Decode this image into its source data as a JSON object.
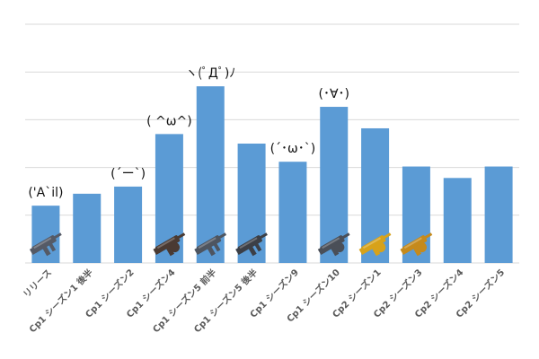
{
  "chart_data": {
    "type": "bar",
    "title": "",
    "xlabel": "",
    "ylabel": "",
    "ylim": [
      0,
      5
    ],
    "grid": true,
    "legend": "none",
    "bar_color": "#5b9bd5",
    "gridline_color": "#d9d9d9",
    "categories": [
      "リリース",
      "Cp1 シーズン1 後半",
      "Cp1 シーズン2",
      "Cp1 シーズン4",
      "Cp1 シーズン5 前半",
      "Cp1 シーズン5 後半",
      "Cp1 シーズン9",
      "Cp1 シーズン10",
      "Cp2 シーズン1",
      "Cp2 シーズン3",
      "Cp2 シーズン4",
      "Cp2 シーズン5"
    ],
    "values": [
      1.2,
      1.45,
      1.6,
      2.7,
      3.7,
      2.5,
      2.12,
      3.27,
      2.82,
      2.02,
      1.78,
      2.02
    ],
    "annotations": [
      {
        "index": 0,
        "text": "('A`il)"
      },
      {
        "index": 2,
        "text": "(´ー`)"
      },
      {
        "index": 3,
        "text": "( ^ω^)"
      },
      {
        "index": 4,
        "text": "ヽ(ﾟДﾟ)ﾉ"
      },
      {
        "index": 6,
        "text": "(´･ω･`)"
      },
      {
        "index": 7,
        "text": "(･∀･)"
      }
    ],
    "weapon_icons": [
      {
        "index": 0,
        "name": "smg-icon",
        "color": "#555a66"
      },
      {
        "index": 3,
        "name": "drum-gun-icon",
        "color": "#4a3a32"
      },
      {
        "index": 4,
        "name": "p90-icon",
        "color": "#4e5560"
      },
      {
        "index": 5,
        "name": "compact-smg-icon",
        "color": "#3c3f46"
      },
      {
        "index": 7,
        "name": "drum-gun-icon",
        "color": "#4a4f58"
      },
      {
        "index": 8,
        "name": "gold-drum-gun-icon",
        "color": "#d7a21a"
      },
      {
        "index": 9,
        "name": "gold-drum-gun-icon",
        "color": "#c58a1c"
      }
    ]
  }
}
